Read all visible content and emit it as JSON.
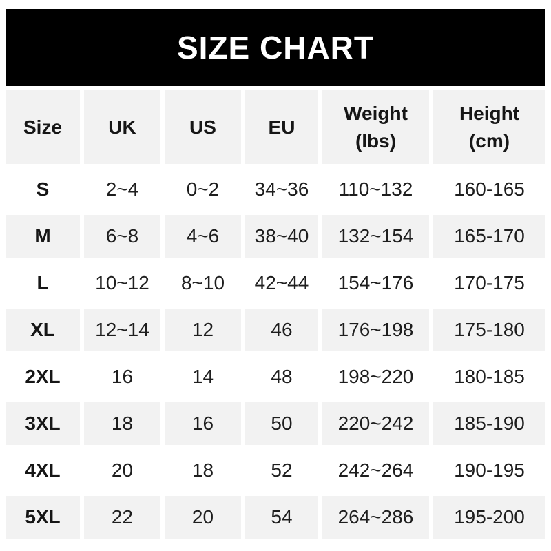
{
  "banner": {
    "title": "SIZE CHART"
  },
  "colors": {
    "banner_bg": "#000000",
    "banner_text": "#ffffff",
    "stripe_gray": "#f2f2f2",
    "row_white": "#ffffff",
    "text": "#1e1e1e"
  },
  "chart_data": {
    "type": "table",
    "title": "SIZE CHART",
    "columns": [
      "Size",
      "UK",
      "US",
      "EU",
      "Weight (lbs)",
      "Height (cm)"
    ],
    "column_headers_display": [
      "Size",
      "UK",
      "US",
      "EU",
      "Weight\n(lbs)",
      "Height\n(cm)"
    ],
    "rows": [
      [
        "S",
        "2~4",
        "0~2",
        "34~36",
        "110~132",
        "160-165"
      ],
      [
        "M",
        "6~8",
        "4~6",
        "38~40",
        "132~154",
        "165-170"
      ],
      [
        "L",
        "10~12",
        "8~10",
        "42~44",
        "154~176",
        "170-175"
      ],
      [
        "XL",
        "12~14",
        "12",
        "46",
        "176~198",
        "175-180"
      ],
      [
        "2XL",
        "16",
        "14",
        "48",
        "198~220",
        "180-185"
      ],
      [
        "3XL",
        "18",
        "16",
        "50",
        "220~242",
        "185-190"
      ],
      [
        "4XL",
        "20",
        "18",
        "52",
        "242~264",
        "190-195"
      ],
      [
        "5XL",
        "22",
        "20",
        "54",
        "264~286",
        "195-200"
      ]
    ],
    "layout": {
      "header_background": "#f2f2f2",
      "striped_rows": "gray stripes on rows M, XL, 3XL, 5XL",
      "grid": "white gutters between cells, no borders"
    }
  }
}
